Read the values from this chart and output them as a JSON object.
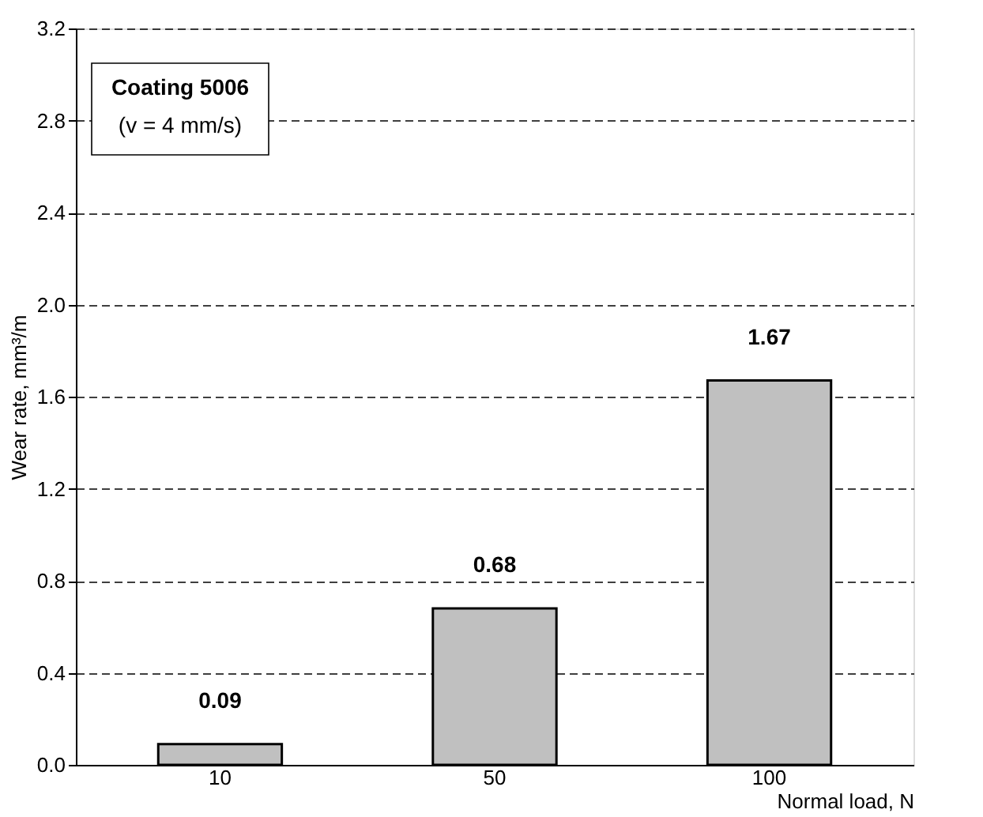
{
  "chart_data": {
    "type": "bar",
    "xlabel": "Normal load, N",
    "ylabel": "Wear rate, mm³/m",
    "categories": [
      "10",
      "50",
      "100"
    ],
    "series": [
      {
        "color": "#c0c0c0",
        "values": [
          0.09,
          0.68,
          1.67
        ]
      }
    ],
    "data_labels": true,
    "ylim": [
      0,
      3.2
    ],
    "yticks": [
      {
        "value": 0,
        "label": "0.0"
      },
      0.4,
      0.8,
      1.2,
      1.6,
      {
        "value": 2,
        "label": "2.0"
      },
      2.4,
      2.8,
      3.2
    ],
    "grid": "y",
    "line_style": "dashed",
    "annotations": [
      "Coating 5006",
      "(v = 4 mm/s)"
    ]
  }
}
